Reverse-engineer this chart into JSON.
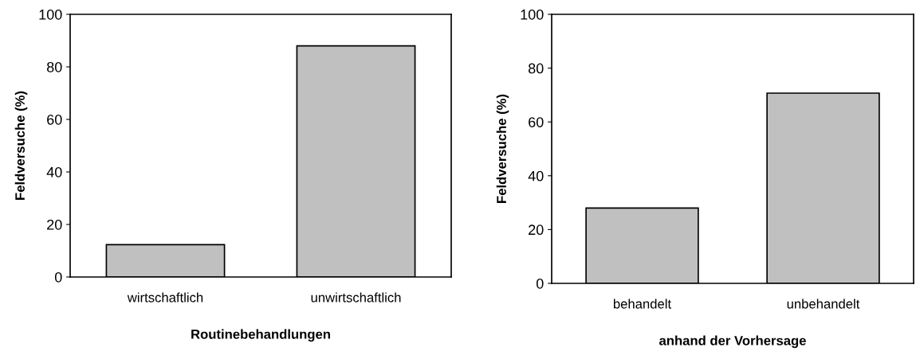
{
  "chart_data": [
    {
      "type": "bar",
      "categories": [
        "wirtschaftlich",
        "unwirtschaftlich"
      ],
      "values": [
        12.3,
        88
      ],
      "color": "#c0c0c0",
      "xlabel": "Routinebehandlungen",
      "ylabel": "Feldversuche (%)",
      "ylim": [
        0,
        100
      ],
      "yticks": [
        0,
        20,
        40,
        60,
        80,
        100
      ],
      "grid": false
    },
    {
      "type": "bar",
      "categories": [
        "behandelt",
        "unbehandelt"
      ],
      "values": [
        28,
        70.7
      ],
      "color": "#c0c0c0",
      "xlabel": "anhand der Vorhersage",
      "ylabel": "Feldversuche (%)",
      "ylim": [
        0,
        100
      ],
      "yticks": [
        0,
        20,
        40,
        60,
        80,
        100
      ],
      "grid": false
    }
  ]
}
